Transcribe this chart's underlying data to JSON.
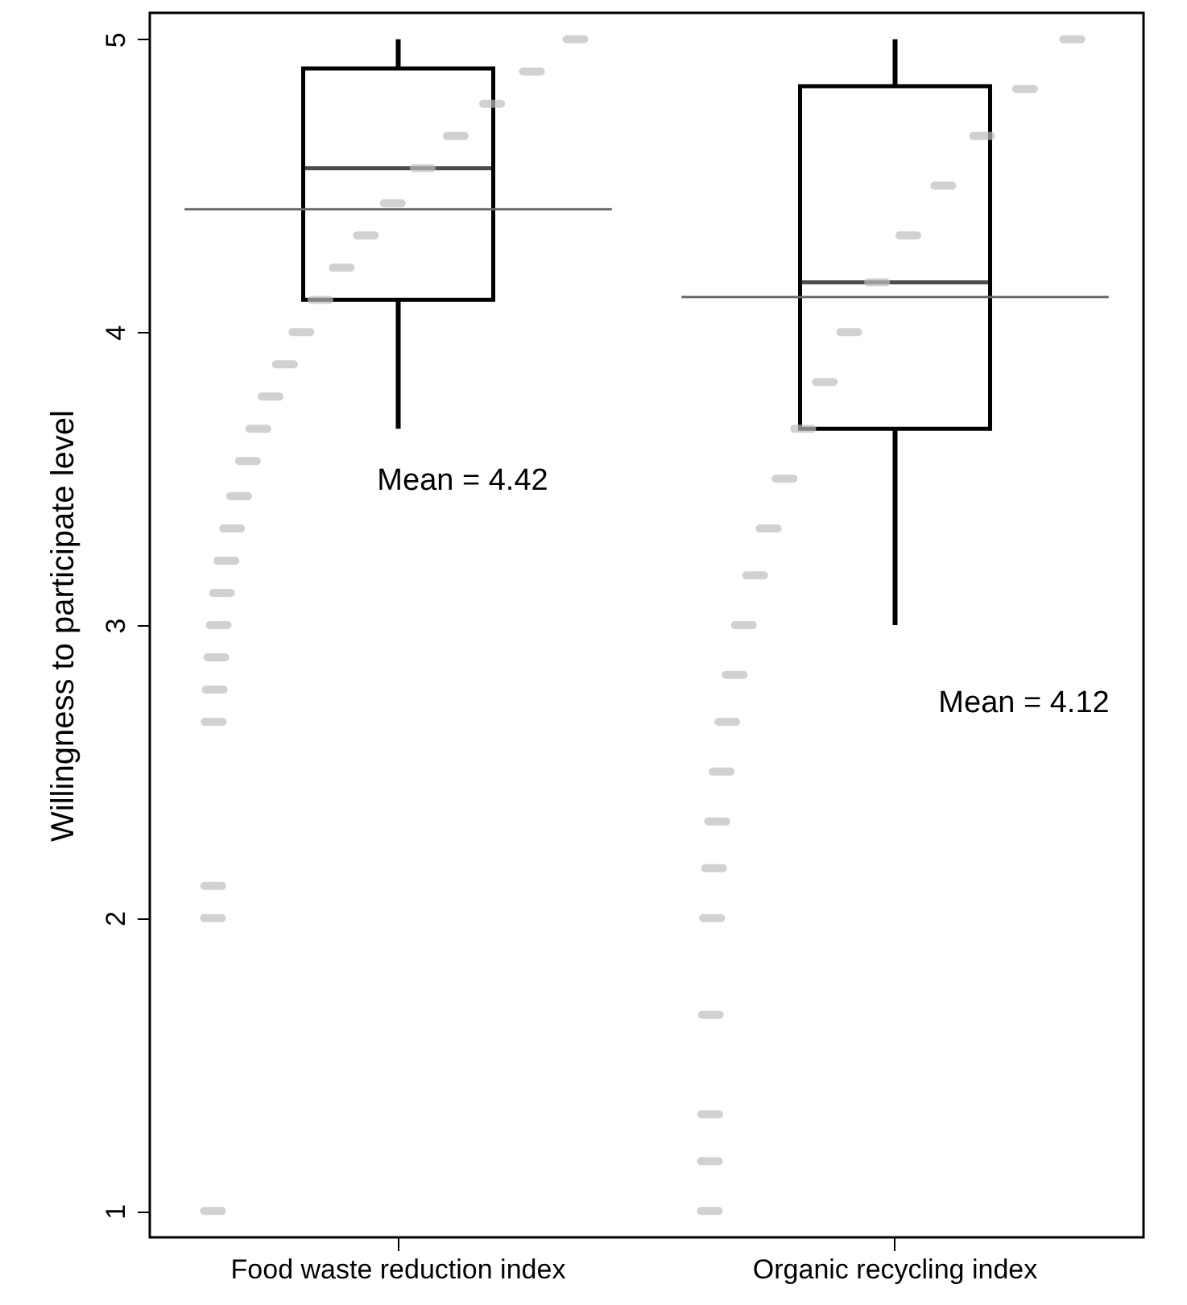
{
  "chart_data": {
    "type": "box",
    "ylabel": "Willingness to participate level",
    "categories": [
      "Food waste reduction index",
      "Organic recycling index"
    ],
    "boxes": [
      {
        "low": 3.67,
        "q1": 4.11,
        "median": 4.56,
        "q3": 4.9,
        "high": 5
      },
      {
        "low": 3.0,
        "q1": 3.67,
        "median": 4.17,
        "q3": 4.84,
        "high": 5
      }
    ],
    "ref_lines": [
      {
        "axis": "y",
        "value": 4.42,
        "color": "#666666"
      },
      {
        "axis": "y",
        "value": 4.12,
        "color": "#666666"
      }
    ],
    "annotations": [
      "Mean = 4.42",
      "Mean = 4.12"
    ],
    "series": [
      {
        "type": "scatter",
        "color": "#bdbdbd",
        "x": [
          "Food waste reduction index",
          "Food waste reduction index",
          "Food waste reduction index",
          "Food waste reduction index",
          "Food waste reduction index",
          "Food waste reduction index",
          "Food waste reduction index",
          "Food waste reduction index",
          "Food waste reduction index",
          "Food waste reduction index",
          "Food waste reduction index",
          "Food waste reduction index",
          "Food waste reduction index",
          "Food waste reduction index",
          "Food waste reduction index",
          "Food waste reduction index",
          "Food waste reduction index",
          "Food waste reduction index",
          "Food waste reduction index",
          "Food waste reduction index",
          "Food waste reduction index",
          "Food waste reduction index",
          "Food waste reduction index",
          "Food waste reduction index",
          "Food waste reduction index",
          "Organic recycling index",
          "Organic recycling index",
          "Organic recycling index",
          "Organic recycling index",
          "Organic recycling index",
          "Organic recycling index",
          "Organic recycling index",
          "Organic recycling index",
          "Organic recycling index",
          "Organic recycling index",
          "Organic recycling index",
          "Organic recycling index",
          "Organic recycling index",
          "Organic recycling index",
          "Organic recycling index",
          "Organic recycling index",
          "Organic recycling index",
          "Organic recycling index",
          "Organic recycling index",
          "Organic recycling index",
          "Organic recycling index",
          "Organic recycling index",
          "Organic recycling index"
        ],
        "values": [
          1,
          2,
          2.11,
          2.67,
          2.78,
          2.89,
          3,
          3.11,
          3.22,
          3.33,
          3.44,
          3.56,
          3.67,
          3.78,
          3.89,
          4,
          4.11,
          4.22,
          4.33,
          4.44,
          4.56,
          4.67,
          4.78,
          4.89,
          5,
          1,
          1.17,
          1.33,
          1.67,
          2,
          2.17,
          2.33,
          2.5,
          2.67,
          2.83,
          3,
          3.17,
          3.33,
          3.5,
          3.67,
          3.83,
          4,
          4.17,
          4.33,
          4.5,
          4.67,
          4.83,
          5
        ]
      }
    ],
    "ylim": [
      0.91,
      5.09
    ],
    "yticks": [
      1,
      2,
      3,
      4,
      5
    ]
  }
}
